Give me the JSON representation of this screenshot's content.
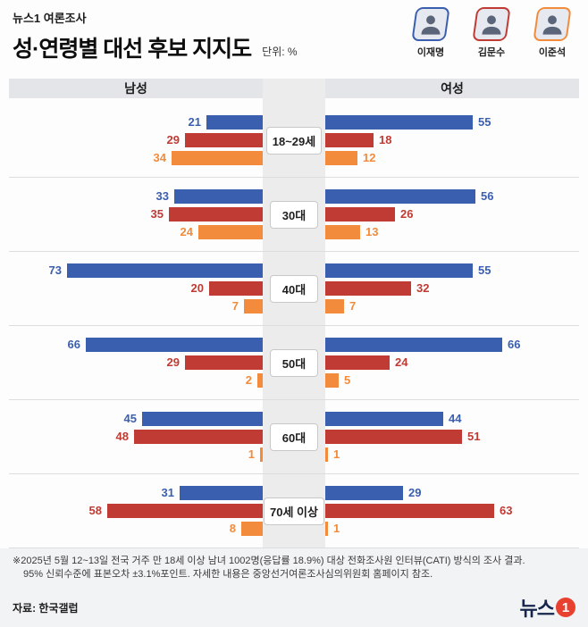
{
  "header": {
    "kicker": "뉴스1 여론조사",
    "title": "성·연령별 대선 후보 지지도",
    "unit": "단위: %"
  },
  "candidates": [
    {
      "name": "이재명",
      "color": "#3a5fae"
    },
    {
      "name": "김문수",
      "color": "#bf3b33"
    },
    {
      "name": "이준석",
      "color": "#f28b3b"
    }
  ],
  "chart_data": {
    "type": "bar",
    "orientation": "diverging-horizontal",
    "title": "성·연령별 대선 후보 지지도",
    "unit": "%",
    "left_header": "남성",
    "right_header": "여성",
    "xmax": 75,
    "categories": [
      "18~29세",
      "30대",
      "40대",
      "50대",
      "60대",
      "70세 이상"
    ],
    "series": [
      {
        "name": "이재명",
        "color": "#3a5fae",
        "male": [
          21,
          33,
          73,
          66,
          45,
          31
        ],
        "female": [
          55,
          56,
          55,
          66,
          44,
          29
        ]
      },
      {
        "name": "김문수",
        "color": "#bf3b33",
        "male": [
          29,
          35,
          20,
          29,
          48,
          58
        ],
        "female": [
          18,
          26,
          32,
          24,
          51,
          63
        ]
      },
      {
        "name": "이준석",
        "color": "#f28b3b",
        "male": [
          34,
          24,
          7,
          2,
          1,
          8
        ],
        "female": [
          12,
          13,
          7,
          5,
          1,
          1
        ]
      }
    ]
  },
  "footer": {
    "note1": "※2025년 5월 12~13일 전국 거주 만 18세 이상 남녀 1002명(응답률 18.9%) 대상 전화조사원 인터뷰(CATI) 방식의 조사 결과.",
    "note2": "95% 신뢰수준에 표본오차 ±3.1%포인트. 자세한 내용은 중앙선거여론조사심의위원회 홈페이지 참조.",
    "source": "자료: 한국갤럽",
    "logo": {
      "text": "뉴스",
      "one": "1"
    }
  }
}
